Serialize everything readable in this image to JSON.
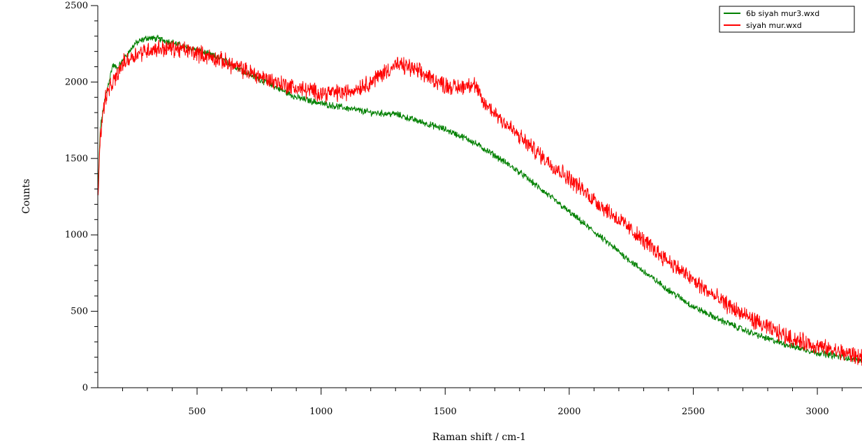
{
  "chart_data": {
    "type": "line",
    "title": "",
    "xlabel": "Raman shift / cm-1",
    "ylabel": "Counts",
    "xlim": [
      100,
      3180
    ],
    "ylim": [
      0,
      2500
    ],
    "x_ticks": [
      500,
      1000,
      1500,
      2000,
      2500,
      3000
    ],
    "y_ticks": [
      0,
      500,
      1000,
      1500,
      2000,
      2500
    ],
    "grid": false,
    "legend_position": "top-right",
    "series": [
      {
        "name": "6b siyah mur3.wxd",
        "color": "#008000",
        "x": [
          100,
          110,
          130,
          160,
          180,
          200,
          250,
          300,
          350,
          400,
          450,
          500,
          600,
          700,
          800,
          900,
          1000,
          1100,
          1200,
          1300,
          1400,
          1500,
          1600,
          1700,
          1800,
          1900,
          2000,
          2100,
          2200,
          2300,
          2400,
          2500,
          2600,
          2700,
          2800,
          2900,
          3000,
          3100,
          3180
        ],
        "y": [
          1250,
          1700,
          1900,
          2110,
          2090,
          2140,
          2250,
          2290,
          2280,
          2260,
          2230,
          2210,
          2150,
          2060,
          1980,
          1900,
          1860,
          1830,
          1800,
          1790,
          1740,
          1690,
          1620,
          1520,
          1410,
          1280,
          1150,
          1020,
          890,
          760,
          640,
          530,
          450,
          380,
          320,
          270,
          230,
          200,
          180
        ]
      },
      {
        "name": "siyah mur.wxd",
        "color": "#ff0000",
        "x": [
          100,
          110,
          130,
          160,
          180,
          200,
          250,
          300,
          350,
          400,
          450,
          500,
          600,
          700,
          800,
          900,
          1000,
          1100,
          1200,
          1250,
          1300,
          1350,
          1400,
          1450,
          1500,
          1550,
          1600,
          1620,
          1650,
          1700,
          1800,
          1900,
          2000,
          2100,
          2200,
          2300,
          2400,
          2500,
          2600,
          2700,
          2800,
          2900,
          3000,
          3100,
          3180
        ],
        "y": [
          1250,
          1650,
          1900,
          1990,
          2050,
          2120,
          2180,
          2210,
          2220,
          2220,
          2210,
          2190,
          2140,
          2070,
          2010,
          1960,
          1930,
          1930,
          2000,
          2060,
          2110,
          2100,
          2060,
          2020,
          1980,
          1960,
          1990,
          1980,
          1870,
          1800,
          1640,
          1500,
          1370,
          1230,
          1100,
          960,
          830,
          700,
          580,
          480,
          390,
          320,
          270,
          230,
          200
        ]
      }
    ]
  }
}
